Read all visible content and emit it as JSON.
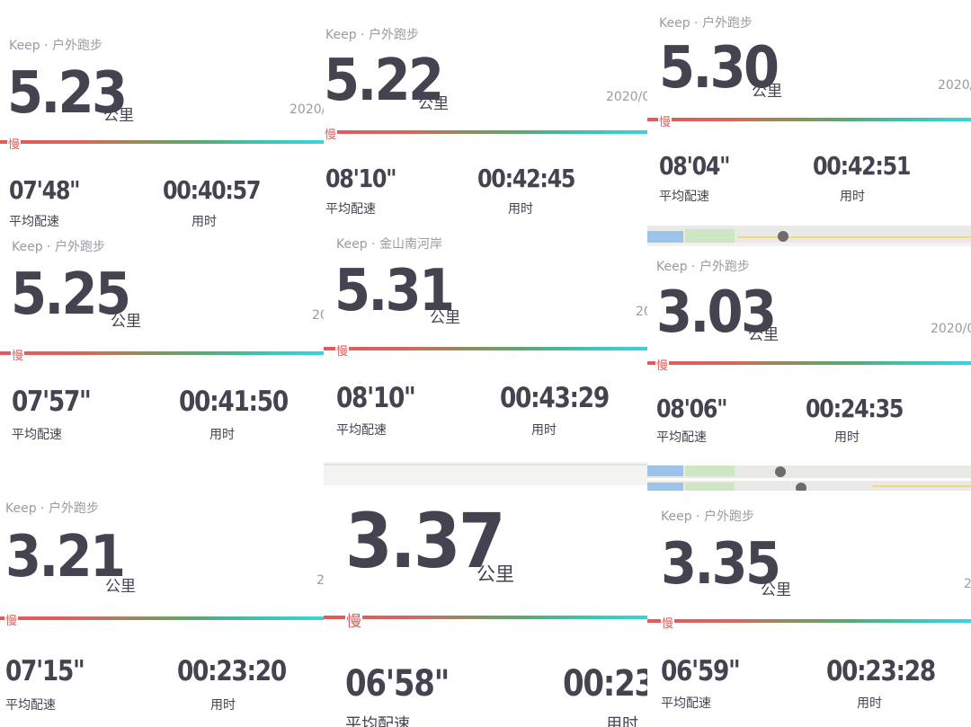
{
  "cards": [
    {
      "source": "Keep · 户外跑步",
      "distance": "5.23",
      "unit": "公里",
      "date": "2020/",
      "slow": "慢",
      "pace": "07'48\"",
      "pace_label": "平均配速",
      "time": "00:40:57",
      "time_label": "用时"
    },
    {
      "source": "Keep · 户外跑步",
      "distance": "5.22",
      "unit": "公里",
      "date": "2020/0",
      "slow": "慢",
      "pace": "08'10\"",
      "pace_label": "平均配速",
      "time": "00:42:45",
      "time_label": "用时"
    },
    {
      "source": "Keep · 户外跑步",
      "distance": "5.30",
      "unit": "公里",
      "date": "2020/",
      "slow": "慢",
      "pace": "08'04\"",
      "pace_label": "平均配速",
      "time": "00:42:51",
      "time_label": "用时"
    },
    {
      "source": "Keep · 户外跑步",
      "distance": "5.25",
      "unit": "公里",
      "date": "20",
      "slow": "慢",
      "pace": "07'57\"",
      "pace_label": "平均配速",
      "time": "00:41:50",
      "time_label": "用时"
    },
    {
      "source": "Keep · 金山南河岸",
      "distance": "5.31",
      "unit": "公里",
      "date": "20",
      "slow": "慢",
      "pace": "08'10\"",
      "pace_label": "平均配速",
      "time": "00:43:29",
      "time_label": "用时"
    },
    {
      "source": "Keep · 户外跑步",
      "distance": "3.03",
      "unit": "公里",
      "date": "2020/0",
      "slow": "慢",
      "pace": "08'06\"",
      "pace_label": "平均配速",
      "time": "00:24:35",
      "time_label": "用时"
    },
    {
      "source": "Keep · 户外跑步",
      "distance": "3.21",
      "unit": "公里",
      "date": "2",
      "slow": "慢",
      "pace": "07'15\"",
      "pace_label": "平均配速",
      "time": "00:23:20",
      "time_label": "用时"
    },
    {
      "source": "",
      "distance": "3.37",
      "unit": "公里",
      "date": "",
      "slow": "慢",
      "pace": "06'58\"",
      "pace_label": "平均配速",
      "time": "00:23:",
      "time_label": "用时"
    },
    {
      "source": "Keep · 户外跑步",
      "distance": "3.35",
      "unit": "公里",
      "date": "2",
      "slow": "慢",
      "pace": "06'59\"",
      "pace_label": "平均配速",
      "time": "00:23:28",
      "time_label": "用时"
    }
  ],
  "colors": {
    "text": "#45434f",
    "muted": "#9a9aa2",
    "slow_red": "#e05a5a",
    "fast_cyan": "#38d4e0"
  }
}
